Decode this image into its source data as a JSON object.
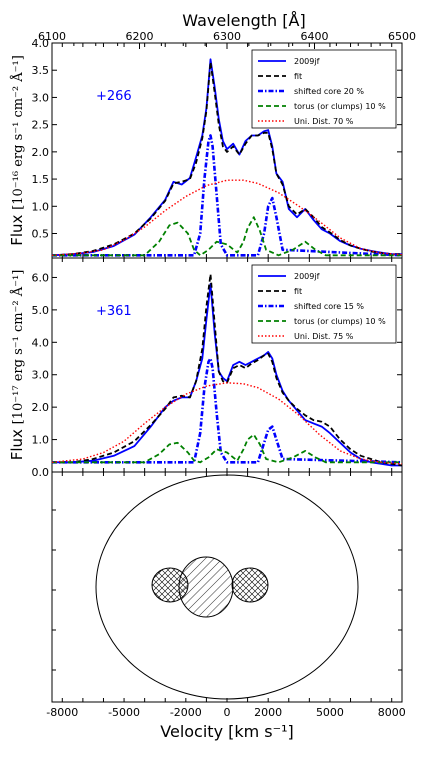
{
  "top_axis": {
    "label": "Wavelength [Å]",
    "ticks": [
      6100,
      6200,
      6300,
      6400,
      6500
    ],
    "range": [
      6100,
      6500
    ]
  },
  "bottom_axis": {
    "label": "Velocity  [km s⁻¹]",
    "ticks": [
      -8000,
      -5000,
      -2000,
      0,
      2000,
      5000,
      8000
    ],
    "range": [
      -8500,
      8500
    ]
  },
  "chart_data": [
    {
      "type": "line",
      "panel": "top",
      "epoch_label": "+266",
      "epoch_color": "#0000ff",
      "ylabel_main": "Flux",
      "ylabel_units": "[10⁻¹⁶ erg s⁻¹ cm⁻² Å⁻¹]",
      "ylim": [
        0.05,
        4.0
      ],
      "yticks": [
        "0.5",
        "1.0",
        "1.5",
        "2.0",
        "2.5",
        "3.0",
        "3.5",
        "4.0"
      ],
      "legend_position": "top-right",
      "series": [
        {
          "name": "2009jf",
          "color": "#0000ff",
          "style": "solid",
          "x": [
            -8500,
            -7500,
            -6500,
            -5500,
            -4500,
            -3700,
            -3000,
            -2600,
            -2200,
            -1800,
            -1500,
            -1200,
            -1000,
            -800,
            -600,
            -400,
            -200,
            0,
            300,
            600,
            900,
            1200,
            1500,
            1800,
            2000,
            2200,
            2400,
            2700,
            3000,
            3400,
            3800,
            4200,
            4600,
            5000,
            5500,
            6000,
            6500,
            7000,
            7500,
            8000,
            8500
          ],
          "y": [
            0.1,
            0.12,
            0.16,
            0.27,
            0.48,
            0.8,
            1.12,
            1.45,
            1.4,
            1.52,
            1.9,
            2.3,
            2.8,
            3.7,
            3.2,
            2.6,
            2.2,
            2.05,
            2.15,
            1.95,
            2.2,
            2.3,
            2.3,
            2.38,
            2.4,
            2.1,
            1.6,
            1.45,
            0.95,
            0.8,
            0.95,
            0.75,
            0.58,
            0.5,
            0.36,
            0.28,
            0.22,
            0.18,
            0.15,
            0.12,
            0.12
          ]
        },
        {
          "name": "fit",
          "color": "#000000",
          "style": "dashed",
          "x": [
            -8500,
            -7500,
            -6500,
            -5500,
            -4500,
            -3700,
            -3000,
            -2600,
            -2200,
            -1800,
            -1500,
            -1200,
            -1000,
            -800,
            -600,
            -400,
            -200,
            0,
            300,
            600,
            900,
            1200,
            1500,
            1800,
            2000,
            2200,
            2400,
            2700,
            3000,
            3400,
            3800,
            4200,
            4600,
            5000,
            5500,
            6000,
            6500,
            7000,
            7500,
            8000,
            8500
          ],
          "y": [
            0.1,
            0.12,
            0.18,
            0.3,
            0.5,
            0.78,
            1.1,
            1.42,
            1.45,
            1.5,
            1.8,
            2.25,
            2.75,
            3.65,
            3.1,
            2.5,
            2.1,
            2.0,
            2.1,
            1.95,
            2.15,
            2.3,
            2.3,
            2.35,
            2.35,
            2.05,
            1.6,
            1.4,
            1.0,
            0.85,
            0.95,
            0.8,
            0.62,
            0.52,
            0.38,
            0.28,
            0.22,
            0.17,
            0.14,
            0.12,
            0.12
          ]
        },
        {
          "name": "shifted core 20 %",
          "color": "#0000ff",
          "style": "dashdot",
          "x": [
            -8500,
            -1600,
            -1300,
            -1100,
            -900,
            -800,
            -700,
            -500,
            -300,
            0,
            1500,
            1800,
            2000,
            2200,
            2400,
            2700,
            8500
          ],
          "y": [
            0.1,
            0.1,
            0.5,
            1.5,
            2.2,
            2.3,
            2.1,
            1.2,
            0.3,
            0.1,
            0.1,
            0.5,
            1.0,
            1.15,
            0.8,
            0.2,
            0.1
          ]
        },
        {
          "name": "torus (or clumps) 10 %",
          "color": "#008000",
          "style": "dashed",
          "x": [
            -8500,
            -4000,
            -3300,
            -2800,
            -2400,
            -1900,
            -1600,
            -1300,
            -900,
            -500,
            0,
            500,
            800,
            1000,
            1300,
            1600,
            1900,
            2500,
            3200,
            3800,
            4300,
            4800,
            5300,
            8500
          ],
          "y": [
            0.1,
            0.1,
            0.35,
            0.65,
            0.7,
            0.5,
            0.2,
            0.1,
            0.2,
            0.35,
            0.3,
            0.15,
            0.35,
            0.6,
            0.8,
            0.55,
            0.2,
            0.1,
            0.2,
            0.35,
            0.2,
            0.1,
            0.1,
            0.1
          ]
        },
        {
          "name": "Uni. Dist. 70 %",
          "color": "#ff0000",
          "style": "dotted",
          "x": [
            -8500,
            -7000,
            -6000,
            -5000,
            -4000,
            -3000,
            -2000,
            -1000,
            0,
            800,
            1500,
            2500,
            3500,
            4500,
            5500,
            6500,
            7500,
            8500
          ],
          "y": [
            0.1,
            0.14,
            0.2,
            0.38,
            0.62,
            0.92,
            1.18,
            1.38,
            1.48,
            1.48,
            1.42,
            1.25,
            1.0,
            0.72,
            0.42,
            0.22,
            0.14,
            0.11
          ]
        }
      ]
    },
    {
      "type": "line",
      "panel": "middle",
      "epoch_label": "+361",
      "epoch_color": "#0000ff",
      "ylabel_main": "Flux",
      "ylabel_units": "[10⁻¹⁷ erg s⁻¹ cm⁻² Å⁻¹]",
      "ylim": [
        0.0,
        6.6
      ],
      "yticks": [
        "0.0",
        "1.0",
        "2.0",
        "3.0",
        "4.0",
        "5.0",
        "6.0"
      ],
      "legend_position": "top-right",
      "series": [
        {
          "name": "2009jf",
          "color": "#0000ff",
          "style": "solid",
          "x": [
            -8500,
            -7500,
            -6500,
            -5500,
            -4500,
            -3700,
            -3000,
            -2600,
            -2200,
            -1800,
            -1500,
            -1200,
            -1000,
            -800,
            -600,
            -400,
            -200,
            0,
            300,
            600,
            900,
            1200,
            1500,
            1800,
            2000,
            2200,
            2400,
            2700,
            3000,
            3400,
            3800,
            4200,
            4600,
            5000,
            5500,
            6000,
            6500,
            7000,
            7500,
            8000,
            8500
          ],
          "y": [
            0.3,
            0.3,
            0.35,
            0.5,
            0.8,
            1.4,
            2.0,
            2.2,
            2.3,
            2.3,
            2.8,
            3.5,
            4.7,
            5.8,
            4.3,
            3.1,
            2.9,
            2.8,
            3.3,
            3.4,
            3.3,
            3.4,
            3.5,
            3.6,
            3.7,
            3.5,
            3.0,
            2.5,
            2.2,
            1.9,
            1.6,
            1.5,
            1.4,
            1.2,
            0.9,
            0.6,
            0.4,
            0.3,
            0.25,
            0.2,
            0.2
          ]
        },
        {
          "name": "fit",
          "color": "#000000",
          "style": "dashed",
          "x": [
            -8500,
            -7500,
            -6500,
            -5500,
            -4500,
            -3700,
            -3000,
            -2600,
            -2200,
            -1800,
            -1500,
            -1200,
            -1000,
            -800,
            -600,
            -400,
            -200,
            0,
            300,
            600,
            900,
            1200,
            1500,
            1800,
            2000,
            2200,
            2400,
            2700,
            3000,
            3400,
            3800,
            4200,
            4600,
            5000,
            5500,
            6000,
            6500,
            7000,
            7500,
            8000,
            8500
          ],
          "y": [
            0.3,
            0.3,
            0.4,
            0.6,
            0.95,
            1.45,
            1.95,
            2.3,
            2.35,
            2.3,
            2.8,
            3.8,
            5.1,
            6.1,
            4.6,
            3.1,
            2.8,
            2.75,
            3.2,
            3.3,
            3.2,
            3.35,
            3.45,
            3.6,
            3.65,
            3.4,
            2.9,
            2.45,
            2.2,
            1.95,
            1.75,
            1.6,
            1.55,
            1.4,
            1.0,
            0.7,
            0.5,
            0.4,
            0.3,
            0.25,
            0.2
          ]
        },
        {
          "name": "shifted core 15 %",
          "color": "#0000ff",
          "style": "dashdot",
          "x": [
            -8500,
            -1600,
            -1300,
            -1100,
            -900,
            -800,
            -700,
            -500,
            -300,
            0,
            1500,
            1800,
            2000,
            2200,
            2400,
            2700,
            8500
          ],
          "y": [
            0.3,
            0.3,
            1.2,
            2.6,
            3.4,
            3.5,
            3.2,
            1.8,
            0.6,
            0.3,
            0.3,
            0.9,
            1.3,
            1.4,
            1.0,
            0.4,
            0.3
          ]
        },
        {
          "name": "torus (or clumps) 10 %",
          "color": "#008000",
          "style": "dashed",
          "x": [
            -8500,
            -4000,
            -3300,
            -2800,
            -2400,
            -1900,
            -1600,
            -1300,
            -900,
            -500,
            0,
            500,
            800,
            1000,
            1300,
            1600,
            1900,
            2500,
            3200,
            3800,
            4300,
            4800,
            5300,
            8500
          ],
          "y": [
            0.3,
            0.3,
            0.55,
            0.85,
            0.9,
            0.6,
            0.35,
            0.3,
            0.45,
            0.7,
            0.6,
            0.35,
            0.7,
            1.0,
            1.15,
            0.85,
            0.4,
            0.3,
            0.45,
            0.65,
            0.45,
            0.3,
            0.3,
            0.3
          ]
        },
        {
          "name": "Uni. Dist. 75 %",
          "color": "#ff0000",
          "style": "dotted",
          "x": [
            -8500,
            -7000,
            -6000,
            -5000,
            -4000,
            -3000,
            -2000,
            -1000,
            0,
            800,
            1500,
            2500,
            3500,
            4500,
            5500,
            6500,
            7500,
            8500
          ],
          "y": [
            0.3,
            0.4,
            0.6,
            0.95,
            1.5,
            2.0,
            2.4,
            2.65,
            2.75,
            2.72,
            2.6,
            2.25,
            1.75,
            1.15,
            0.65,
            0.4,
            0.3,
            0.25
          ]
        }
      ]
    }
  ]
}
